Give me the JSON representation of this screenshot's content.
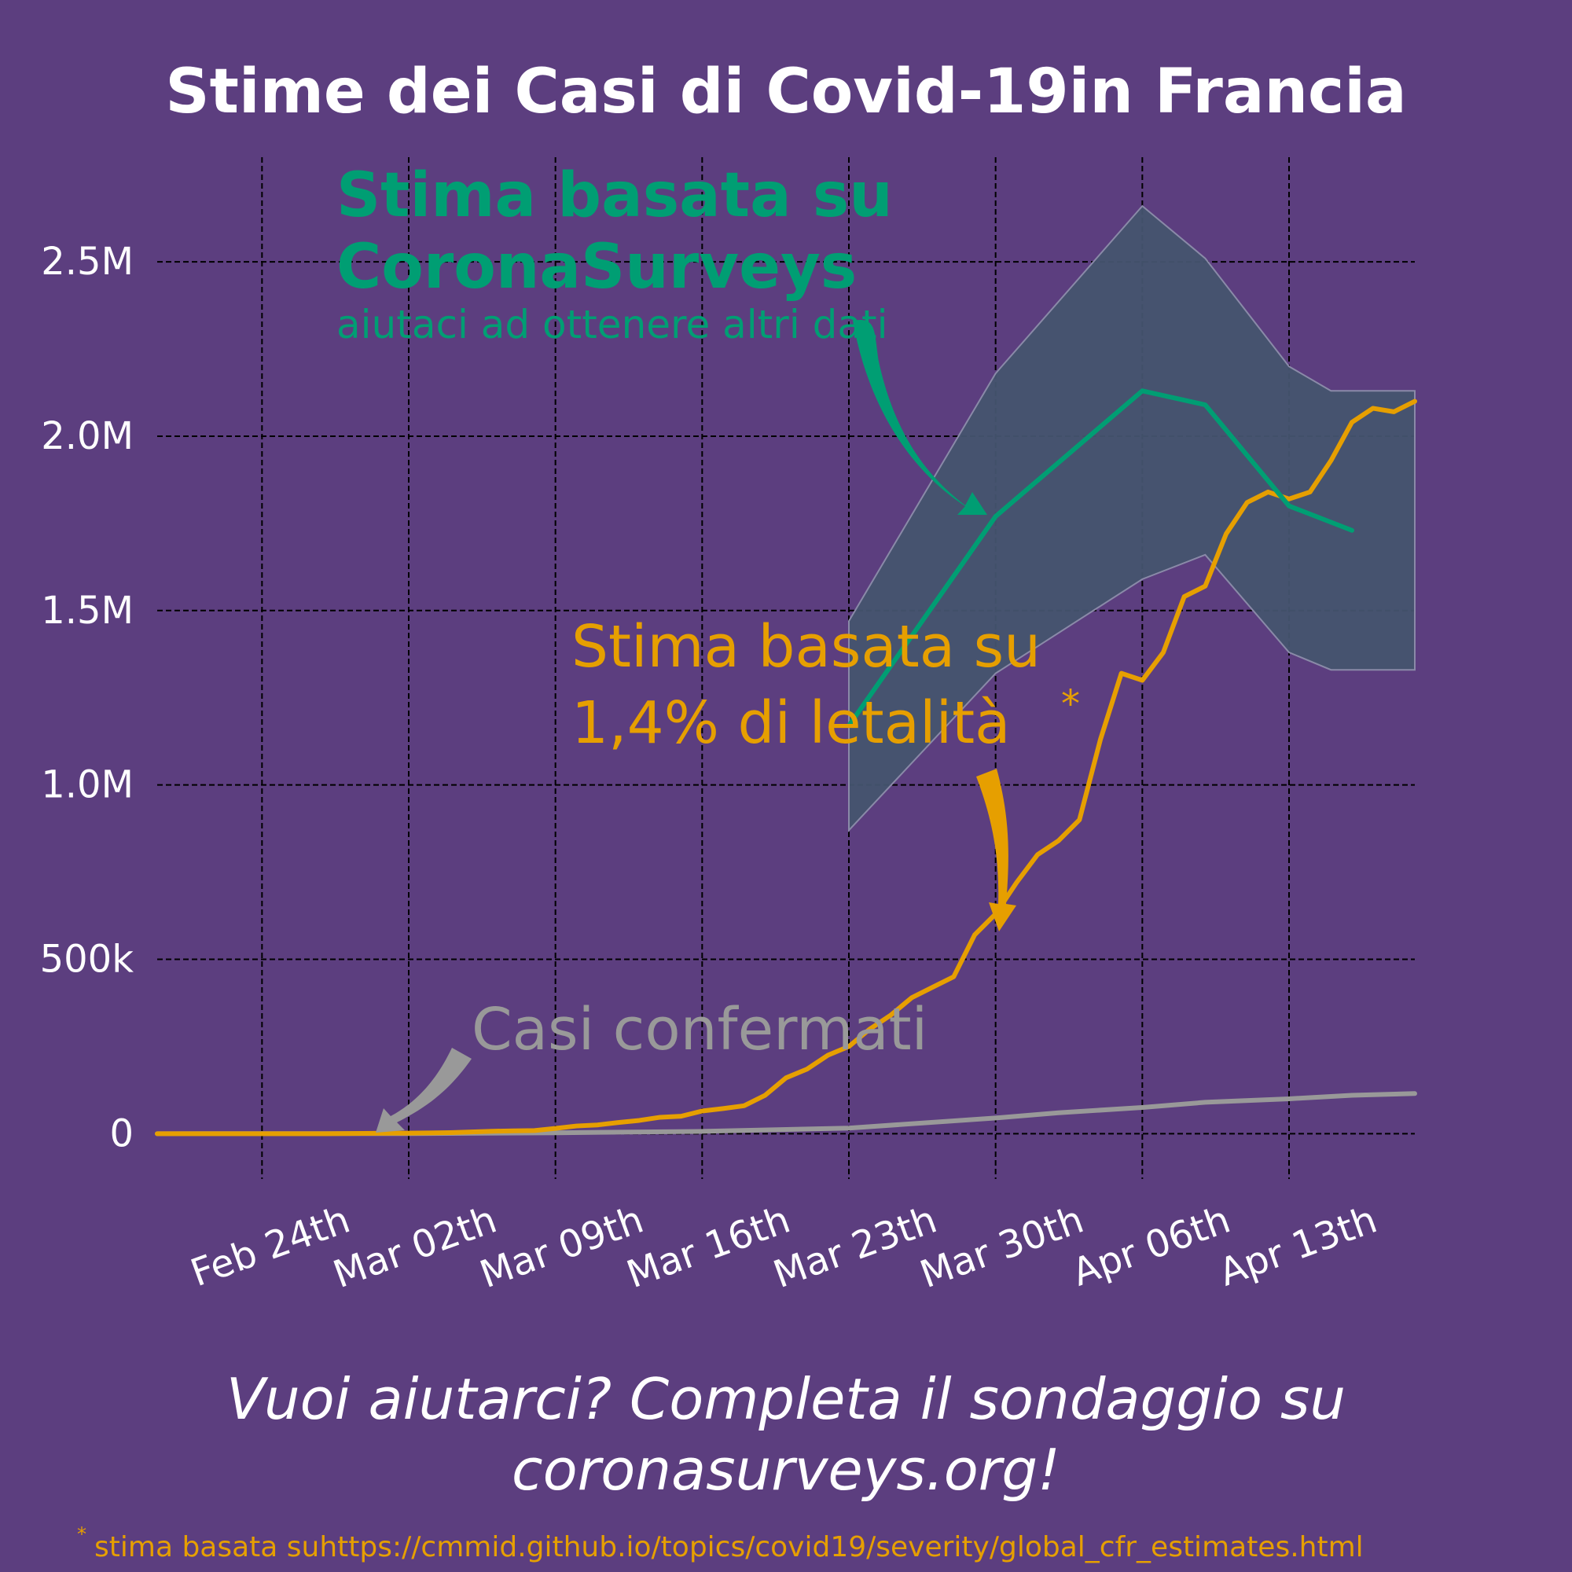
{
  "title": "Stime dei Casi di Covid-19in Francia",
  "colors": {
    "background": "#5c3e7f",
    "surveys": "#009e73",
    "cfr": "#e69f00",
    "confirmed": "#999999",
    "band_fill": "#44546f",
    "text": "#ffffff"
  },
  "annotations": {
    "surveys_title_line1": "Stima basata su",
    "surveys_title_line2": "CoronaSurveys",
    "surveys_subtitle": "aiutaci ad ottenere altri dati",
    "cfr_line1": "Stima basata su",
    "cfr_line2": "1,4% di letalità",
    "cfr_asterisk": "*",
    "confirmed_label": "Casi confermati"
  },
  "footer": {
    "cta_line1": "Vuoi aiutarci? Completa il sondaggio su",
    "cta_line2": "coronasurveys.org!",
    "note_asterisk": "*",
    "note_text": "stima basata suhttps://cmmid.github.io/topics/covid19/severity/global_cfr_estimates.html"
  },
  "chart_data": {
    "type": "line",
    "title": "Stime dei Casi di Covid-19in Francia",
    "xlabel": "",
    "ylabel": "",
    "x_ticks": [
      {
        "day": 7,
        "label": "Feb 24th"
      },
      {
        "day": 14,
        "label": "Mar 02th"
      },
      {
        "day": 21,
        "label": "Mar 09th"
      },
      {
        "day": 28,
        "label": "Mar 16th"
      },
      {
        "day": 35,
        "label": "Mar 23th"
      },
      {
        "day": 42,
        "label": "Mar 30th"
      },
      {
        "day": 49,
        "label": "Apr 06th"
      },
      {
        "day": 56,
        "label": "Apr 13th"
      }
    ],
    "y_ticks": [
      {
        "value": 0,
        "label": "0"
      },
      {
        "value": 500000,
        "label": "500k"
      },
      {
        "value": 1000000,
        "label": "1.0M"
      },
      {
        "value": 1500000,
        "label": "1.5M"
      },
      {
        "value": 2000000,
        "label": "2.0M"
      },
      {
        "value": 2500000,
        "label": "2.5M"
      }
    ],
    "xlim": [
      2,
      62
    ],
    "ylim": [
      -130000,
      2800000
    ],
    "grid": true,
    "series": [
      {
        "key": "surveys",
        "x": [
          35,
          42,
          49,
          52,
          56,
          59
        ],
        "y": [
          1170000,
          1770000,
          2130000,
          2090000,
          1800000,
          1730000
        ],
        "band_x": [
          35,
          42,
          49,
          52,
          56,
          58,
          62
        ],
        "band_upper": [
          1470000,
          2180000,
          2660000,
          2510000,
          2200000,
          2130000,
          2130000
        ],
        "band_lower": [
          870000,
          1320000,
          1590000,
          1660000,
          1380000,
          1330000,
          1330000
        ]
      },
      {
        "key": "cfr",
        "x": [
          2,
          10,
          15,
          16,
          17,
          18,
          19,
          20,
          21,
          22,
          23,
          24,
          25,
          26,
          27,
          28,
          29,
          30,
          31,
          32,
          33,
          34,
          35,
          36,
          37,
          38,
          39,
          40,
          41,
          42,
          43,
          44,
          45,
          46,
          47,
          48,
          49,
          50,
          51,
          52,
          53,
          54,
          55,
          56,
          57,
          58,
          59,
          60,
          61,
          62
        ],
        "y": [
          0,
          0,
          2000,
          3000,
          5000,
          7000,
          8000,
          9000,
          15000,
          22000,
          25000,
          32000,
          38000,
          47000,
          50000,
          65000,
          72000,
          80000,
          110000,
          160000,
          185000,
          225000,
          250000,
          300000,
          340000,
          390000,
          420000,
          450000,
          570000,
          630000,
          720000,
          800000,
          840000,
          900000,
          1130000,
          1320000,
          1300000,
          1380000,
          1540000,
          1570000,
          1720000,
          1810000,
          1840000,
          1820000,
          1840000,
          1930000,
          2040000,
          2080000,
          2070000,
          2100000
        ]
      },
      {
        "key": "confirmed",
        "x": [
          2,
          14,
          21,
          28,
          35,
          42,
          45,
          49,
          52,
          56,
          59,
          62
        ],
        "y": [
          0,
          200,
          2500,
          6500,
          16000,
          45000,
          60000,
          75000,
          90000,
          100000,
          110000,
          115000
        ]
      }
    ]
  }
}
